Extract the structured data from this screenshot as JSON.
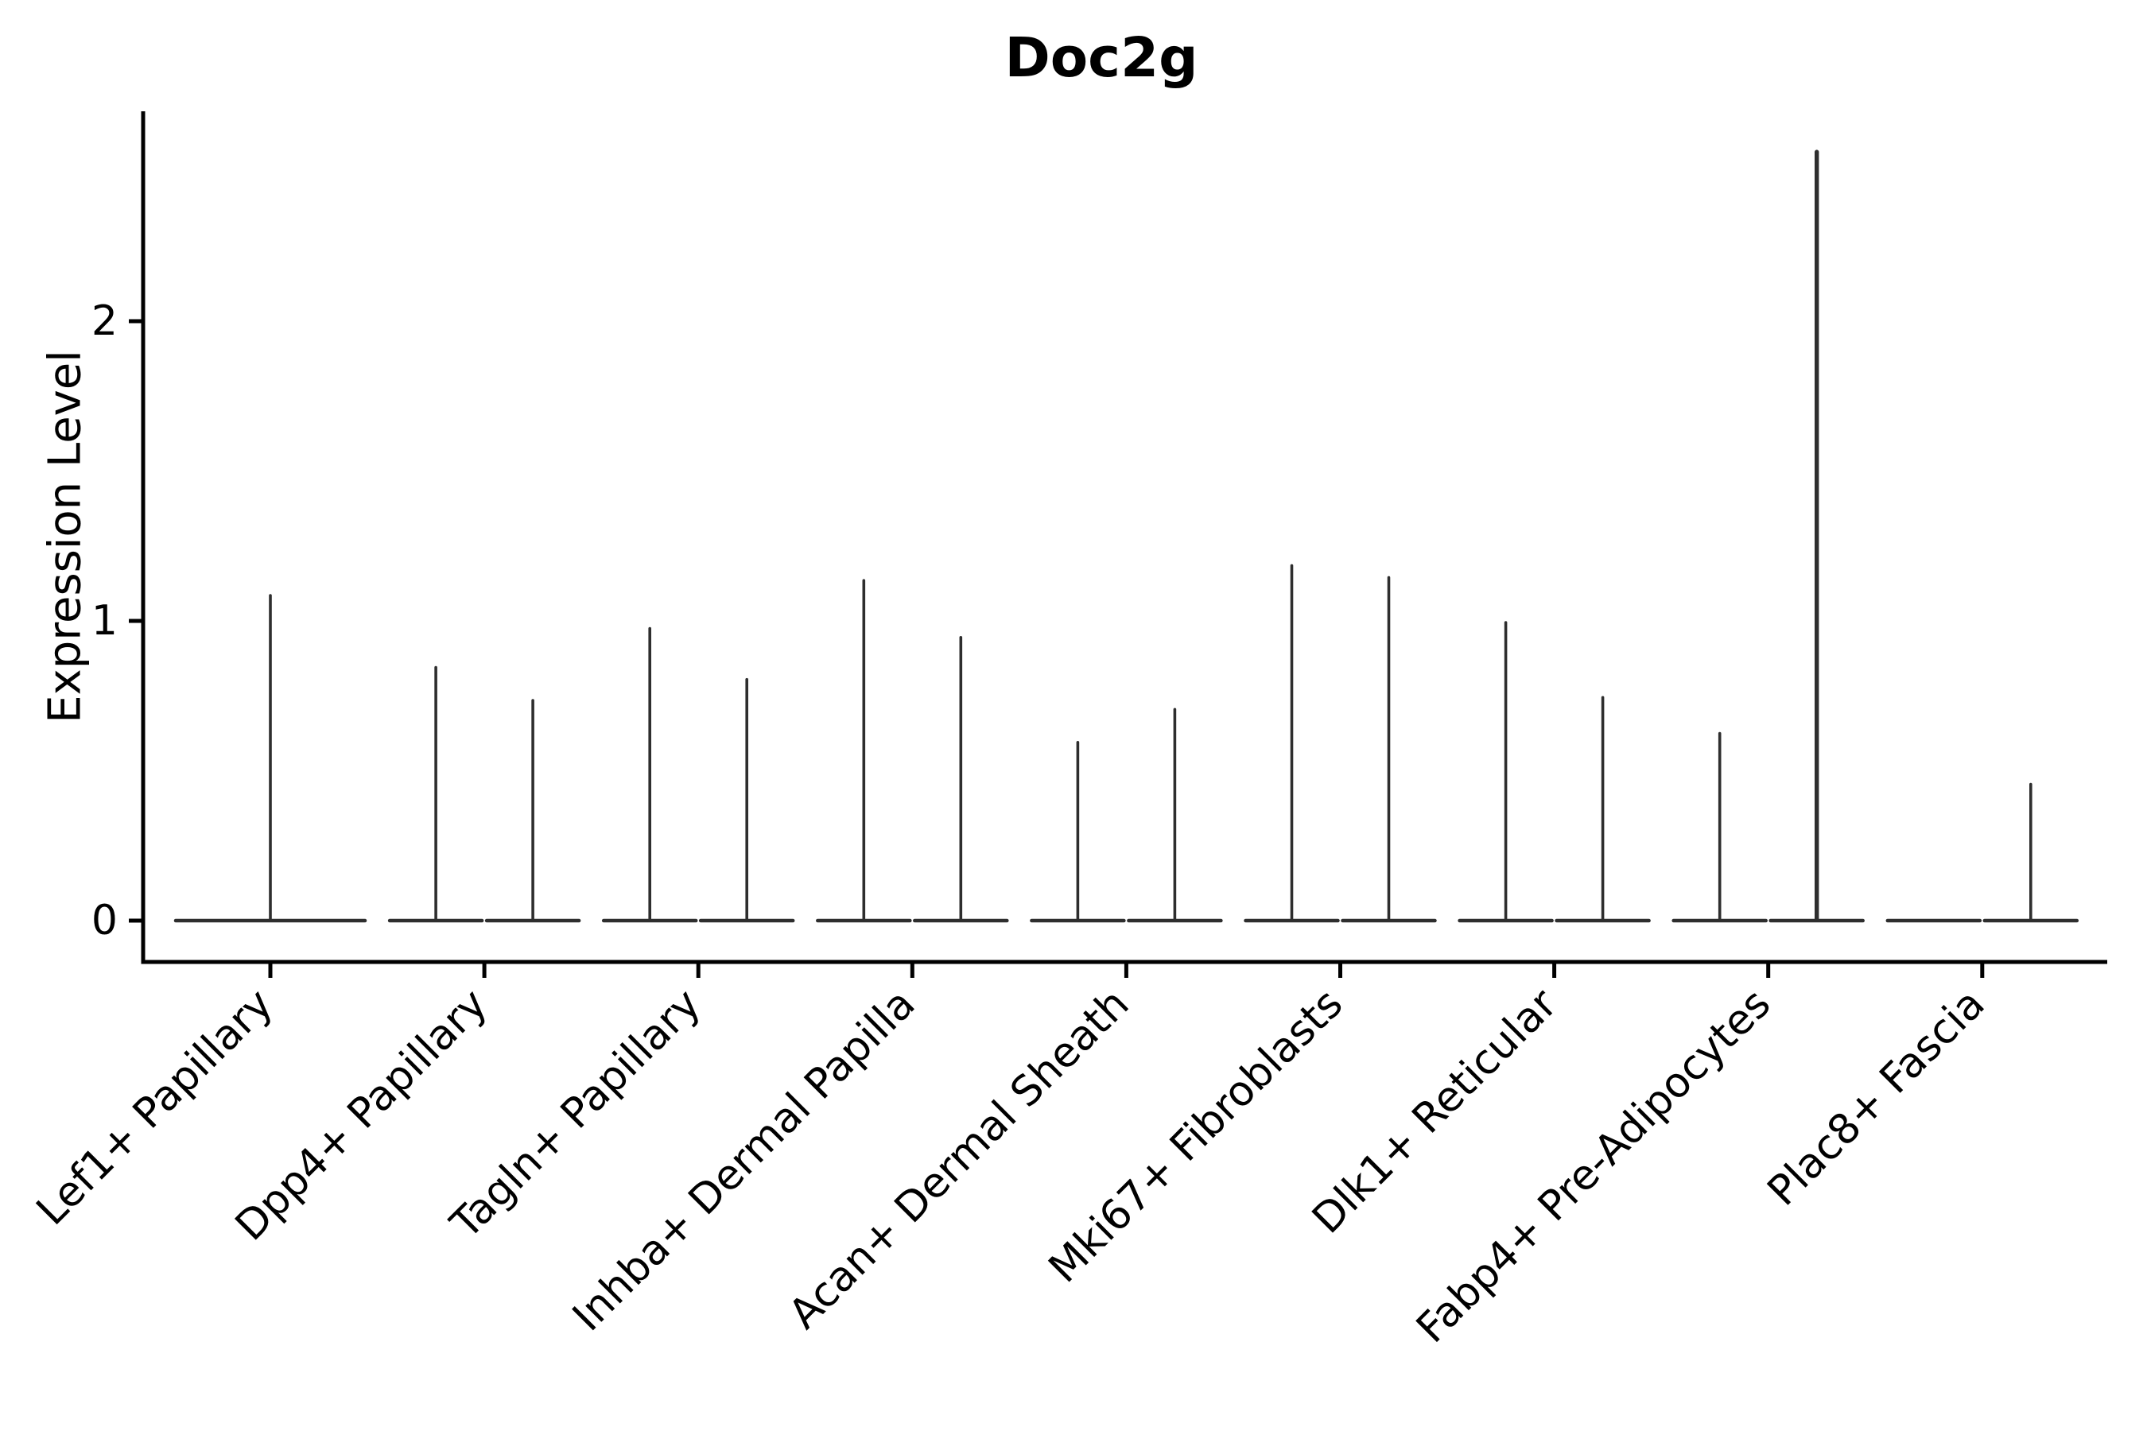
{
  "title": "Doc2g",
  "y_axis": {
    "label": "Expression Level",
    "tick_labels": [
      "0",
      "1",
      "2"
    ]
  },
  "x_axis": {
    "categories": [
      "Lef1+ Papillary",
      "Dpp4+ Papillary",
      "Tagln+ Papillary",
      "Inhba+ Dermal Papilla",
      "Acan+ Dermal Sheath",
      "Mki67+ Fibroblasts",
      "Dlk1+ Reticular",
      "Fabp4+ Pre-Adipocytes",
      "Plac8+ Fascia"
    ]
  },
  "chart_data": {
    "type": "violin",
    "title": "Doc2g",
    "xlabel": "",
    "ylabel": "Expression Level",
    "yticks": [
      0,
      1,
      2
    ],
    "ylim": [
      0,
      2.7
    ],
    "grid": false,
    "legend": null,
    "description": "Gene-expression violin plot; every distribution is concentrated at 0 (wide flat base at y=0) with a thin density spike rising to the maximum expression value. Most categories contain two side-by-side violins (left/right dodge), Lef1+ Papillary has one centered full-width violin, and Plac8+ Fascia's left violin is entirely zero.",
    "categories": [
      "Lef1+ Papillary",
      "Dpp4+ Papillary",
      "Tagln+ Papillary",
      "Inhba+ Dermal Papilla",
      "Acan+ Dermal Sheath",
      "Mki67+ Fibroblasts",
      "Dlk1+ Reticular",
      "Fabp4+ Pre-Adipocytes",
      "Plac8+ Fascia"
    ],
    "violins": [
      {
        "category": "Lef1+ Papillary",
        "slots": [
          {
            "pos": "center",
            "max": 1.09
          }
        ]
      },
      {
        "category": "Dpp4+ Papillary",
        "slots": [
          {
            "pos": "left",
            "max": 0.85
          },
          {
            "pos": "right",
            "max": 0.74
          }
        ]
      },
      {
        "category": "Tagln+ Papillary",
        "slots": [
          {
            "pos": "left",
            "max": 0.98
          },
          {
            "pos": "right",
            "max": 0.81
          }
        ]
      },
      {
        "category": "Inhba+ Dermal Papilla",
        "slots": [
          {
            "pos": "left",
            "max": 1.14
          },
          {
            "pos": "right",
            "max": 0.95
          }
        ]
      },
      {
        "category": "Acan+ Dermal Sheath",
        "slots": [
          {
            "pos": "left",
            "max": 0.6
          },
          {
            "pos": "right",
            "max": 0.71
          }
        ]
      },
      {
        "category": "Mki67+ Fibroblasts",
        "slots": [
          {
            "pos": "left",
            "max": 1.19
          },
          {
            "pos": "right",
            "max": 1.15
          }
        ]
      },
      {
        "category": "Dlk1+ Reticular",
        "slots": [
          {
            "pos": "left",
            "max": 1.0
          },
          {
            "pos": "right",
            "max": 0.75
          }
        ]
      },
      {
        "category": "Fabp4+ Pre-Adipocytes",
        "slots": [
          {
            "pos": "left",
            "max": 0.63
          },
          {
            "pos": "right",
            "max": 2.57
          }
        ]
      },
      {
        "category": "Plac8+ Fascia",
        "slots": [
          {
            "pos": "left",
            "max": 0.0
          },
          {
            "pos": "right",
            "max": 0.46
          }
        ]
      }
    ],
    "colors": {
      "violin": "#2e2e2e",
      "axis": "#000000",
      "text": "#000000",
      "background": "#ffffff"
    }
  }
}
